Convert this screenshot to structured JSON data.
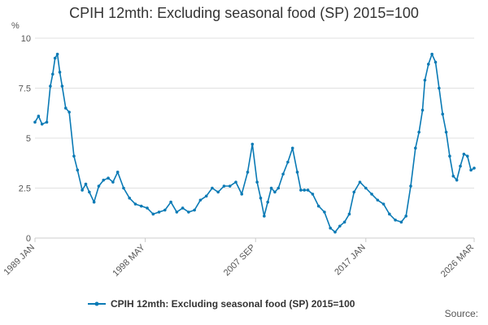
{
  "chart_data": {
    "type": "line",
    "title": "CPIH 12mth: Excluding seasonal food (SP) 2015=100",
    "ylabel": "%",
    "xlabel": "",
    "ylim": [
      0,
      10
    ],
    "yticks": [
      0,
      2.5,
      5,
      7.5,
      10
    ],
    "ytick_labels": [
      "0",
      "2.5",
      "5",
      "7.5",
      "10"
    ],
    "xlim": [
      1989.0,
      2026.17
    ],
    "xticks": [
      1989.0,
      1998.33,
      2007.67,
      2017.0,
      2026.17
    ],
    "xtick_labels": [
      "1989 JAN",
      "1998 MAY",
      "2007 SEP",
      "2017 JAN",
      "2026 MAR"
    ],
    "grid": true,
    "legend_position": "bottom",
    "source": "Source:",
    "colors": {
      "series": "#0a7ab5",
      "grid": "#e0e0e0",
      "axis": "#cccccc"
    },
    "series": [
      {
        "name": "CPIH 12mth: Excluding seasonal food (SP) 2015=100",
        "x": [
          1989.0,
          1989.3,
          1989.6,
          1990.0,
          1990.3,
          1990.5,
          1990.7,
          1990.9,
          1991.1,
          1991.3,
          1991.6,
          1991.9,
          1992.3,
          1992.6,
          1993.0,
          1993.3,
          1993.6,
          1994.0,
          1994.4,
          1994.8,
          1995.2,
          1995.6,
          1996.0,
          1996.5,
          1997.0,
          1997.5,
          1998.0,
          1998.5,
          1999.0,
          1999.5,
          2000.0,
          2000.5,
          2001.0,
          2001.5,
          2002.0,
          2002.5,
          2003.0,
          2003.5,
          2004.0,
          2004.5,
          2005.0,
          2005.5,
          2006.0,
          2006.5,
          2007.0,
          2007.4,
          2007.8,
          2008.1,
          2008.4,
          2008.7,
          2009.0,
          2009.3,
          2009.6,
          2010.0,
          2010.4,
          2010.8,
          2011.2,
          2011.5,
          2011.8,
          2012.1,
          2012.5,
          2013.0,
          2013.5,
          2014.0,
          2014.4,
          2014.8,
          2015.2,
          2015.6,
          2016.0,
          2016.5,
          2017.0,
          2017.5,
          2018.0,
          2018.5,
          2019.0,
          2019.5,
          2020.0,
          2020.4,
          2020.8,
          2021.2,
          2021.5,
          2021.8,
          2022.0,
          2022.3,
          2022.6,
          2022.9,
          2023.2,
          2023.5,
          2023.8,
          2024.1,
          2024.4,
          2024.7,
          2025.0,
          2025.3,
          2025.6,
          2025.9,
          2026.17
        ],
        "values": [
          5.8,
          6.1,
          5.7,
          5.8,
          7.6,
          8.2,
          9.0,
          9.2,
          8.3,
          7.6,
          6.5,
          6.3,
          4.1,
          3.4,
          2.4,
          2.7,
          2.3,
          1.8,
          2.6,
          2.9,
          3.0,
          2.8,
          3.3,
          2.5,
          2.0,
          1.7,
          1.6,
          1.5,
          1.2,
          1.3,
          1.4,
          1.8,
          1.3,
          1.5,
          1.3,
          1.4,
          1.9,
          2.1,
          2.5,
          2.3,
          2.6,
          2.6,
          2.8,
          2.2,
          3.3,
          4.7,
          2.8,
          2.0,
          1.1,
          1.8,
          2.5,
          2.3,
          2.5,
          3.2,
          3.8,
          4.5,
          3.3,
          2.4,
          2.4,
          2.4,
          2.2,
          1.6,
          1.3,
          0.5,
          0.3,
          0.6,
          0.8,
          1.2,
          2.3,
          2.8,
          2.5,
          2.2,
          1.9,
          1.7,
          1.2,
          0.9,
          0.8,
          1.1,
          2.6,
          4.5,
          5.3,
          6.4,
          7.9,
          8.7,
          9.2,
          8.8,
          7.5,
          6.2,
          5.3,
          4.1,
          3.1,
          2.9,
          3.6,
          4.2,
          4.1,
          3.4,
          3.5
        ]
      }
    ]
  }
}
